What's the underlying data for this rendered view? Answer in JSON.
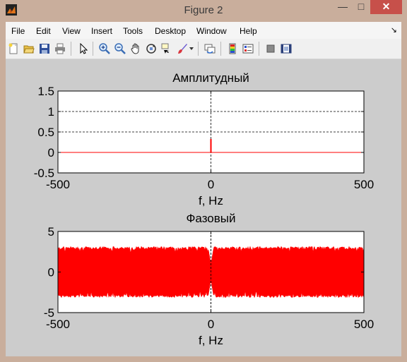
{
  "window": {
    "title": "Figure 2",
    "controls": {
      "minimize": "—",
      "maximize": "□",
      "close": "✕"
    }
  },
  "menubar": {
    "items": [
      "File",
      "Edit",
      "View",
      "Insert",
      "Tools",
      "Desktop",
      "Window",
      "Help"
    ],
    "overflow_arrow": "↘"
  },
  "toolbar": {
    "buttons": [
      "new-figure-icon",
      "open-file-icon",
      "save-icon",
      "print-icon",
      "edit-plot-arrow-icon",
      "zoom-in-icon",
      "zoom-out-icon",
      "pan-hand-icon",
      "rotate-3d-icon",
      "data-cursor-icon",
      "brush-icon",
      "brush-dropdown-icon",
      "link-plot-icon",
      "insert-colorbar-icon",
      "insert-legend-icon",
      "hide-plot-tools-icon",
      "show-plot-tools-icon"
    ]
  },
  "chart_data": [
    {
      "type": "line",
      "title": "Амплитудный",
      "xlabel": "f, Hz",
      "ylabel": "",
      "xlim": [
        -500,
        500
      ],
      "ylim": [
        -0.5,
        1.5
      ],
      "xticks": [
        "-500",
        "0",
        "500"
      ],
      "yticks": [
        "-0.5",
        "0",
        "0.5",
        "1",
        "1.5"
      ],
      "grid_lines_y": [
        0.5,
        1
      ],
      "grid_lines_x": [
        0
      ],
      "color": "#ff0000",
      "baseline": 0,
      "spike": {
        "x": 0,
        "y": 0.33
      },
      "background": "#ffffff"
    },
    {
      "type": "line",
      "title": "Фазовый",
      "xlabel": "f, Hz",
      "ylabel": "",
      "xlim": [
        -500,
        500
      ],
      "ylim": [
        -5,
        5
      ],
      "xticks": [
        "-500",
        "0",
        "500"
      ],
      "yticks": [
        "-5",
        "0",
        "5"
      ],
      "grid_lines_x": [
        0
      ],
      "color": "#ff0000",
      "band": {
        "upper": 3.14,
        "lower": -3.14
      },
      "background": "#ffffff"
    }
  ],
  "colors": {
    "plot_line": "#ff0000",
    "figure_bg": "#cccccc",
    "title_bar": "#c9ae9c",
    "close_button": "#c7504a"
  }
}
